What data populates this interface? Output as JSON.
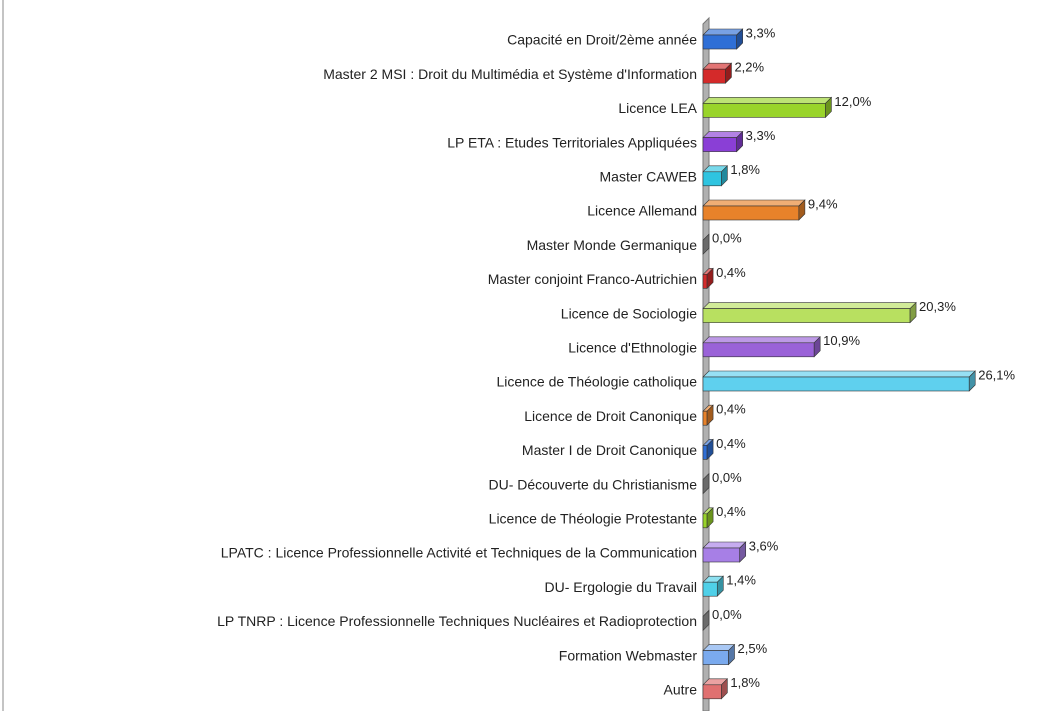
{
  "chart_data": {
    "type": "bar",
    "orientation": "horizontal",
    "categories": [
      "Capacité en Droit/2ème année",
      "Master 2 MSI : Droit du Multimédia et Système d'Information",
      "Licence LEA",
      "LP ETA : Etudes Territoriales Appliquées",
      "Master CAWEB",
      "Licence Allemand",
      "Master Monde Germanique",
      "Master conjoint Franco-Autrichien",
      "Licence de Sociologie",
      "Licence d'Ethnologie",
      "Licence de Théologie catholique",
      "Licence de Droit Canonique",
      "Master I de Droit Canonique",
      "DU- Découverte du Christianisme",
      "Licence de Théologie Protestante",
      "LPATC : Licence Professionnelle Activité et Techniques de la Communication",
      "DU- Ergologie du Travail",
      "LP TNRP : Licence Professionnelle Techniques Nucléaires et Radioprotection",
      "Formation Webmaster",
      "Autre"
    ],
    "values": [
      3.3,
      2.2,
      12.0,
      3.3,
      1.8,
      9.4,
      0.0,
      0.4,
      20.3,
      10.9,
      26.1,
      0.4,
      0.4,
      0.0,
      0.4,
      3.6,
      1.4,
      0.0,
      2.5,
      1.8
    ],
    "value_labels": [
      "3,3%",
      "2,2%",
      "12,0%",
      "3,3%",
      "1,8%",
      "9,4%",
      "0,0%",
      "0,4%",
      "20,3%",
      "10,9%",
      "26,1%",
      "0,4%",
      "0,4%",
      "0,0%",
      "0,4%",
      "3,6%",
      "1,4%",
      "0,0%",
      "2,5%",
      "1,8%"
    ],
    "colors": [
      "#2f6fd6",
      "#d42a2a",
      "#99d42a",
      "#8a3fd6",
      "#2fc4e0",
      "#e8822a",
      "#999999",
      "#d42a2a",
      "#b8e060",
      "#9a62d8",
      "#5fd0ee",
      "#e8822a",
      "#2f6fd6",
      "#999999",
      "#99d42a",
      "#a77fe6",
      "#4fd0e8",
      "#999999",
      "#7aaaee",
      "#e07070"
    ]
  }
}
